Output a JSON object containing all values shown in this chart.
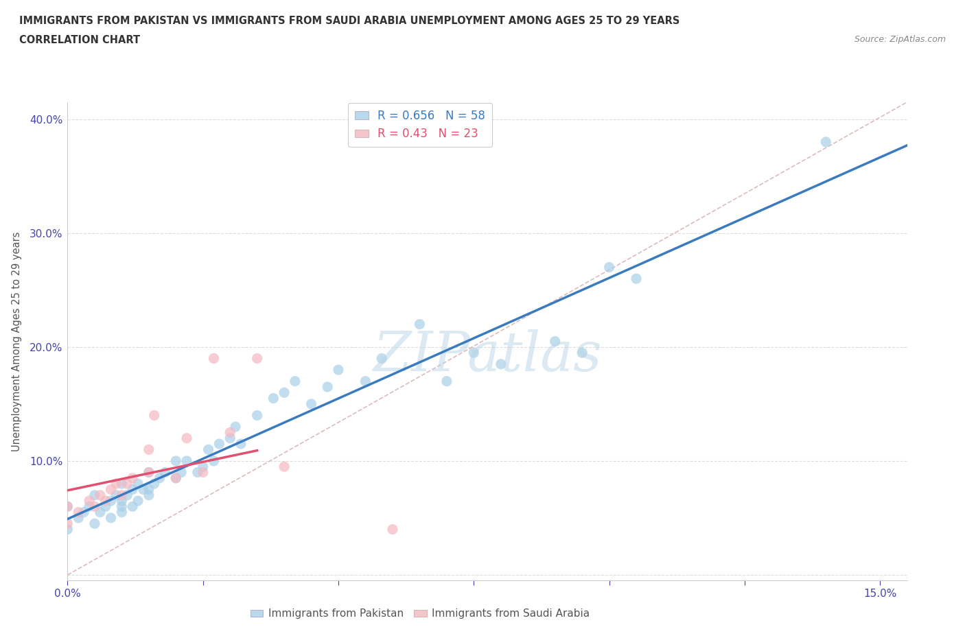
{
  "title_line1": "IMMIGRANTS FROM PAKISTAN VS IMMIGRANTS FROM SAUDI ARABIA UNEMPLOYMENT AMONG AGES 25 TO 29 YEARS",
  "title_line2": "CORRELATION CHART",
  "source": "Source: ZipAtlas.com",
  "xlim": [
    0.0,
    0.155
  ],
  "ylim": [
    -0.005,
    0.415
  ],
  "pakistan_R": 0.656,
  "pakistan_N": 58,
  "saudi_R": 0.43,
  "saudi_N": 23,
  "pakistan_color": "#a8d0e8",
  "saudi_color": "#f4b8c1",
  "pakistan_line_color": "#3a7bbf",
  "saudi_line_color": "#e05070",
  "diagonal_color": "#ddbbbb",
  "watermark_color": "#b8d4e8",
  "pakistan_x": [
    0.0,
    0.0,
    0.002,
    0.003,
    0.004,
    0.005,
    0.005,
    0.006,
    0.007,
    0.008,
    0.008,
    0.009,
    0.01,
    0.01,
    0.01,
    0.01,
    0.011,
    0.012,
    0.012,
    0.013,
    0.013,
    0.014,
    0.015,
    0.015,
    0.015,
    0.016,
    0.017,
    0.018,
    0.02,
    0.02,
    0.021,
    0.022,
    0.024,
    0.025,
    0.026,
    0.027,
    0.028,
    0.03,
    0.031,
    0.032,
    0.035,
    0.038,
    0.04,
    0.042,
    0.045,
    0.048,
    0.05,
    0.055,
    0.058,
    0.065,
    0.07,
    0.075,
    0.08,
    0.09,
    0.095,
    0.1,
    0.105,
    0.14
  ],
  "pakistan_y": [
    0.04,
    0.06,
    0.05,
    0.055,
    0.06,
    0.045,
    0.07,
    0.055,
    0.06,
    0.05,
    0.065,
    0.07,
    0.055,
    0.06,
    0.065,
    0.08,
    0.07,
    0.06,
    0.075,
    0.065,
    0.08,
    0.075,
    0.07,
    0.075,
    0.09,
    0.08,
    0.085,
    0.09,
    0.085,
    0.1,
    0.09,
    0.1,
    0.09,
    0.095,
    0.11,
    0.1,
    0.115,
    0.12,
    0.13,
    0.115,
    0.14,
    0.155,
    0.16,
    0.17,
    0.15,
    0.165,
    0.18,
    0.17,
    0.19,
    0.22,
    0.17,
    0.195,
    0.185,
    0.205,
    0.195,
    0.27,
    0.26,
    0.38
  ],
  "saudi_x": [
    0.0,
    0.0,
    0.002,
    0.004,
    0.005,
    0.006,
    0.007,
    0.008,
    0.009,
    0.01,
    0.011,
    0.012,
    0.015,
    0.015,
    0.016,
    0.02,
    0.022,
    0.025,
    0.027,
    0.03,
    0.035,
    0.04,
    0.06
  ],
  "saudi_y": [
    0.045,
    0.06,
    0.055,
    0.065,
    0.06,
    0.07,
    0.065,
    0.075,
    0.08,
    0.07,
    0.08,
    0.085,
    0.09,
    0.11,
    0.14,
    0.085,
    0.12,
    0.09,
    0.19,
    0.125,
    0.19,
    0.095,
    0.04
  ],
  "xticks": [
    0.0,
    0.025,
    0.05,
    0.075,
    0.1,
    0.125,
    0.15
  ],
  "yticks": [
    0.0,
    0.1,
    0.2,
    0.3,
    0.4
  ],
  "watermark": "ZIPatlas"
}
